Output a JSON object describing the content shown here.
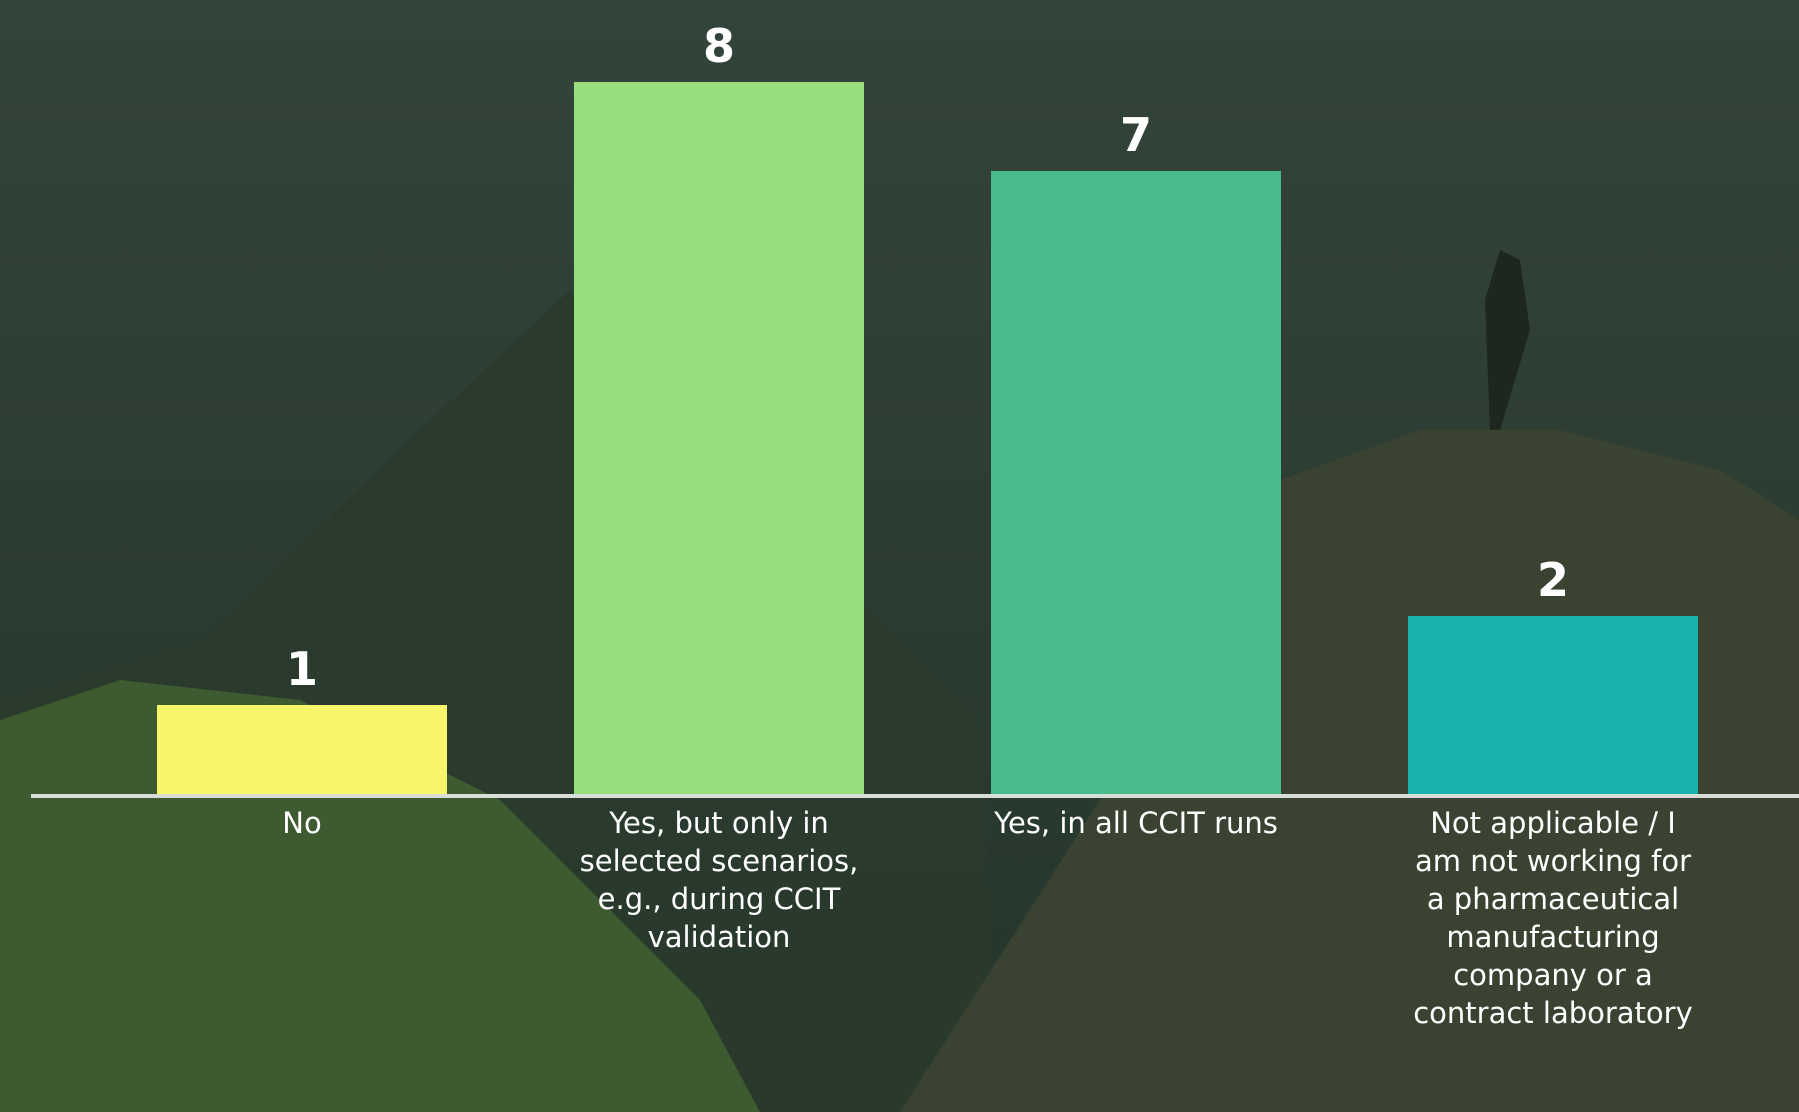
{
  "chart_data": {
    "type": "bar",
    "categories": [
      "No",
      "Yes, but only in selected scenarios, e.g., during CCIT validation",
      "Yes, in all CCIT runs",
      "Not applicable / I am not working for a pharmaceutical manufacturing company or a contract laboratory"
    ],
    "values": [
      1,
      8,
      7,
      2
    ],
    "colors": [
      "#f7f56a",
      "#98de7e",
      "#47bb8c",
      "#17b2ae"
    ]
  }
}
